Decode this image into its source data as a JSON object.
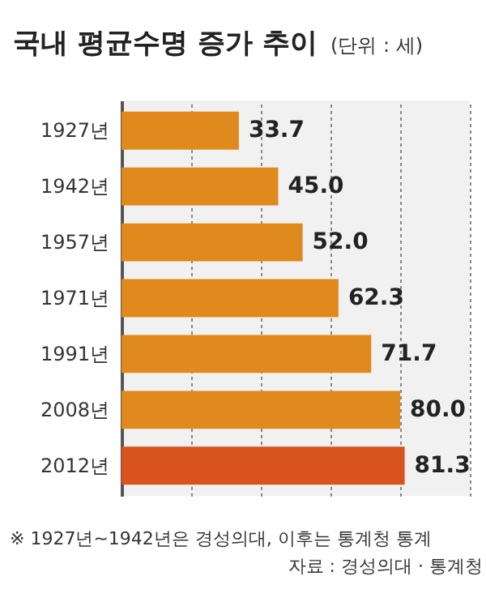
{
  "chart_data": {
    "type": "bar",
    "orientation": "horizontal",
    "title": "국내 평균수명 증가 추이",
    "subtitle": "(단위 : 세)",
    "categories": [
      "1927년",
      "1942년",
      "1957년",
      "1971년",
      "1991년",
      "2008년",
      "2012년"
    ],
    "values": [
      33.7,
      45.0,
      52.0,
      62.3,
      71.7,
      80.0,
      81.3
    ],
    "colors": [
      "#e08a1e",
      "#e08a1e",
      "#e08a1e",
      "#e08a1e",
      "#e08a1e",
      "#e08a1e",
      "#d9531e"
    ],
    "value_labels": [
      "33.7",
      "45.0",
      "52.0",
      "62.3",
      "71.7",
      "80.0",
      "81.3"
    ],
    "xlim": [
      0,
      100
    ],
    "xticks": [
      {
        "value": 20,
        "label": null
      },
      {
        "value": 40,
        "label": null
      },
      {
        "value": 60,
        "label": null
      },
      {
        "value": 80,
        "label": null
      },
      {
        "value": 100,
        "label": null
      }
    ],
    "grid": "x",
    "tick_labels": "y",
    "annotations": [
      "※ 1927년~1942년은 경성의대, 이후는 통계청 통계",
      "자료 : 경성의대 · 통계청"
    ]
  }
}
